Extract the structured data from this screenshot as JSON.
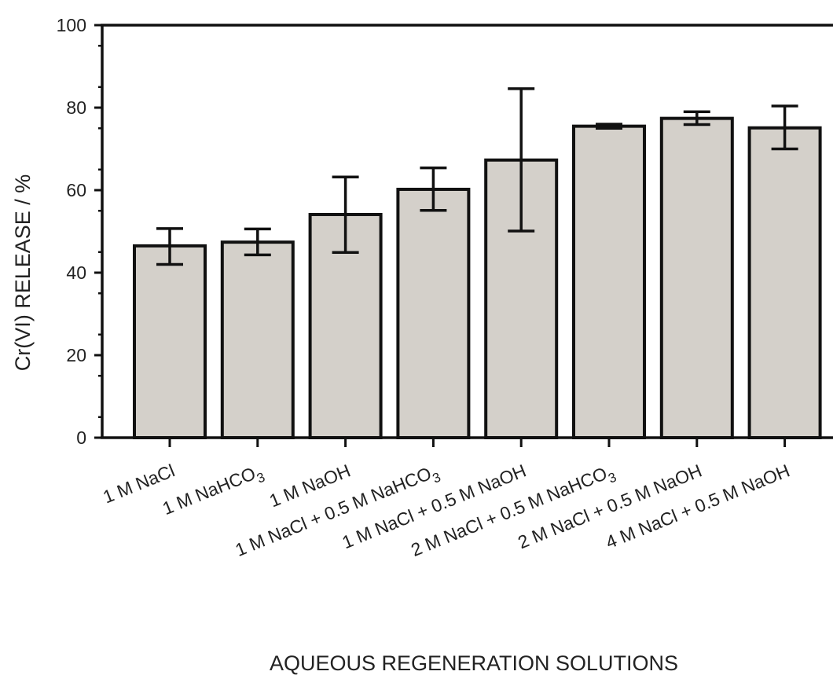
{
  "chart_data": {
    "type": "bar",
    "title": "",
    "xlabel": "AQUEOUS REGENERATION SOLUTIONS",
    "ylabel": "Cr(VI) RELEASE / %",
    "ylim": [
      0,
      100
    ],
    "yticks": [
      0,
      20,
      40,
      60,
      80,
      100
    ],
    "grid": false,
    "categories": [
      "1 M NaCl",
      "1 M NaHCO3",
      "1 M NaOH",
      "1 M NaCl + 0.5 M NaHCO3",
      "1 M NaCl + 0.5 M NaOH",
      "2 M NaCl + 0.5 M NaHCO3",
      "2 M NaCl + 0.5 M NaOH",
      "4 M NaCl + 0.5 M NaOH"
    ],
    "values": [
      46.5,
      47.4,
      54.1,
      60.2,
      67.3,
      75.5,
      77.4,
      75.1
    ],
    "error_low": [
      42.0,
      44.3,
      44.9,
      55.1,
      50.1,
      75.0,
      75.9,
      70.0
    ],
    "error_high": [
      50.7,
      50.6,
      63.2,
      65.4,
      84.6,
      76.0,
      79.0,
      80.4
    ],
    "colors": {
      "bar_fill": "#d4d0ca",
      "bar_stroke": "#111111",
      "axis": "#111111"
    }
  }
}
